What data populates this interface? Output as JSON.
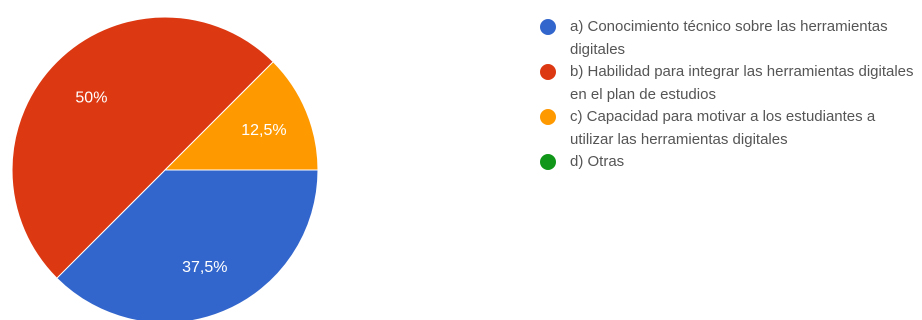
{
  "chart_data": {
    "type": "pie",
    "title": "",
    "slices": [
      {
        "label": "a) Conocimiento técnico sobre las herramientas digitales",
        "value": 37.5,
        "display": "37,5%",
        "color": "#3366cc"
      },
      {
        "label": "b) Habilidad para integrar las herramientas digitales en el plan de estudios",
        "value": 50,
        "display": "50%",
        "color": "#dc3912"
      },
      {
        "label": "c) Capacidad para motivar a los estudiantes a utilizar las herramientas digitales",
        "value": 12.5,
        "display": "12,5%",
        "color": "#ff9900"
      },
      {
        "label": "d) Otras",
        "value": 0,
        "display": "",
        "color": "#109618"
      }
    ],
    "legend_position": "right"
  }
}
